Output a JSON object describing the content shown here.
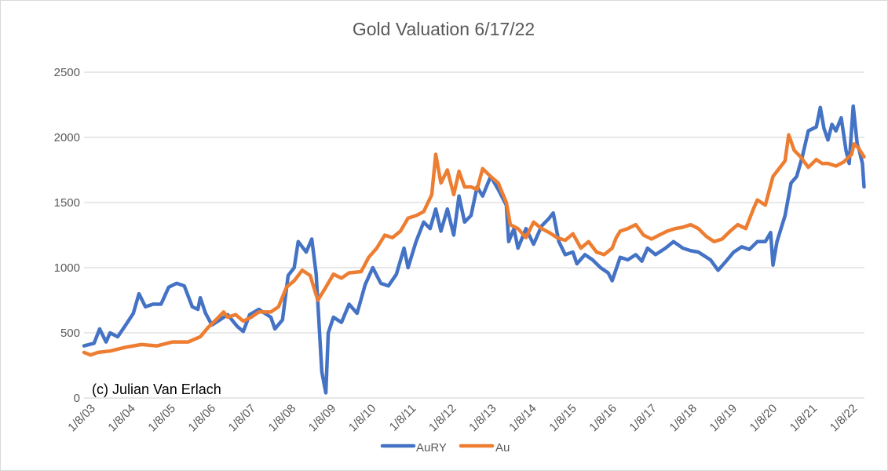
{
  "chart_data": {
    "type": "line",
    "title": "Gold Valuation 6/17/22",
    "annotation": "(c) Julian Van Erlach",
    "xlabel": "",
    "ylabel": "",
    "xlim": [
      2003.0,
      2022.46
    ],
    "ylim": [
      0,
      2500
    ],
    "y_ticks": [
      "0",
      "500",
      "1000",
      "1500",
      "2000",
      "2500"
    ],
    "x_tick_labels": [
      "1/8/03",
      "1/8/04",
      "1/8/05",
      "1/8/06",
      "1/8/07",
      "1/8/08",
      "1/8/09",
      "1/8/10",
      "1/8/11",
      "1/8/12",
      "1/8/13",
      "1/8/14",
      "1/8/15",
      "1/8/16",
      "1/8/17",
      "1/8/18",
      "1/8/19",
      "1/8/20",
      "1/8/21",
      "1/8/22"
    ],
    "grid": "horizontal",
    "legend_position": "bottom",
    "series": [
      {
        "name": "AuRY",
        "color": "#4472c4",
        "points": [
          [
            2003.0,
            400
          ],
          [
            2003.25,
            420
          ],
          [
            2003.39,
            530
          ],
          [
            2003.55,
            430
          ],
          [
            2003.65,
            500
          ],
          [
            2003.84,
            470
          ],
          [
            2004.04,
            560
          ],
          [
            2004.23,
            650
          ],
          [
            2004.37,
            800
          ],
          [
            2004.53,
            700
          ],
          [
            2004.72,
            720
          ],
          [
            2004.92,
            720
          ],
          [
            2005.11,
            850
          ],
          [
            2005.31,
            880
          ],
          [
            2005.5,
            860
          ],
          [
            2005.7,
            700
          ],
          [
            2005.84,
            680
          ],
          [
            2005.9,
            770
          ],
          [
            2006.03,
            650
          ],
          [
            2006.19,
            560
          ],
          [
            2006.39,
            600
          ],
          [
            2006.58,
            640
          ],
          [
            2006.82,
            550
          ],
          [
            2006.97,
            510
          ],
          [
            2007.13,
            640
          ],
          [
            2007.36,
            680
          ],
          [
            2007.66,
            620
          ],
          [
            2007.76,
            530
          ],
          [
            2007.95,
            600
          ],
          [
            2008.09,
            940
          ],
          [
            2008.24,
            1000
          ],
          [
            2008.34,
            1200
          ],
          [
            2008.54,
            1120
          ],
          [
            2008.68,
            1220
          ],
          [
            2008.79,
            950
          ],
          [
            2008.93,
            200
          ],
          [
            2009.03,
            40
          ],
          [
            2009.09,
            500
          ],
          [
            2009.22,
            620
          ],
          [
            2009.42,
            580
          ],
          [
            2009.61,
            720
          ],
          [
            2009.81,
            650
          ],
          [
            2010.01,
            870
          ],
          [
            2010.2,
            1000
          ],
          [
            2010.4,
            880
          ],
          [
            2010.59,
            860
          ],
          [
            2010.79,
            950
          ],
          [
            2010.98,
            1150
          ],
          [
            2011.08,
            1000
          ],
          [
            2011.28,
            1200
          ],
          [
            2011.47,
            1350
          ],
          [
            2011.63,
            1300
          ],
          [
            2011.77,
            1450
          ],
          [
            2011.9,
            1280
          ],
          [
            2012.06,
            1450
          ],
          [
            2012.22,
            1250
          ],
          [
            2012.35,
            1550
          ],
          [
            2012.49,
            1350
          ],
          [
            2012.65,
            1400
          ],
          [
            2012.8,
            1620
          ],
          [
            2012.94,
            1550
          ],
          [
            2013.14,
            1700
          ],
          [
            2013.33,
            1600
          ],
          [
            2013.53,
            1480
          ],
          [
            2013.59,
            1200
          ],
          [
            2013.72,
            1300
          ],
          [
            2013.82,
            1150
          ],
          [
            2014.02,
            1300
          ],
          [
            2014.21,
            1180
          ],
          [
            2014.41,
            1320
          ],
          [
            2014.6,
            1380
          ],
          [
            2014.7,
            1420
          ],
          [
            2014.84,
            1200
          ],
          [
            2015.0,
            1100
          ],
          [
            2015.19,
            1120
          ],
          [
            2015.29,
            1030
          ],
          [
            2015.49,
            1100
          ],
          [
            2015.68,
            1060
          ],
          [
            2015.88,
            1000
          ],
          [
            2016.07,
            960
          ],
          [
            2016.17,
            900
          ],
          [
            2016.37,
            1080
          ],
          [
            2016.56,
            1060
          ],
          [
            2016.76,
            1100
          ],
          [
            2016.91,
            1050
          ],
          [
            2017.05,
            1150
          ],
          [
            2017.25,
            1100
          ],
          [
            2017.5,
            1150
          ],
          [
            2017.7,
            1200
          ],
          [
            2017.93,
            1150
          ],
          [
            2018.13,
            1130
          ],
          [
            2018.32,
            1120
          ],
          [
            2018.62,
            1060
          ],
          [
            2018.81,
            980
          ],
          [
            2019.01,
            1050
          ],
          [
            2019.2,
            1120
          ],
          [
            2019.4,
            1160
          ],
          [
            2019.59,
            1140
          ],
          [
            2019.79,
            1200
          ],
          [
            2019.99,
            1200
          ],
          [
            2020.12,
            1270
          ],
          [
            2020.18,
            1020
          ],
          [
            2020.28,
            1200
          ],
          [
            2020.48,
            1400
          ],
          [
            2020.63,
            1650
          ],
          [
            2020.77,
            1700
          ],
          [
            2020.91,
            1850
          ],
          [
            2021.06,
            2050
          ],
          [
            2021.26,
            2080
          ],
          [
            2021.36,
            2230
          ],
          [
            2021.45,
            2070
          ],
          [
            2021.55,
            1980
          ],
          [
            2021.65,
            2100
          ],
          [
            2021.75,
            2050
          ],
          [
            2021.88,
            2150
          ],
          [
            2022.0,
            1900
          ],
          [
            2022.08,
            1800
          ],
          [
            2022.18,
            2240
          ],
          [
            2022.28,
            1950
          ],
          [
            2022.33,
            1900
          ],
          [
            2022.41,
            1800
          ],
          [
            2022.45,
            1620
          ]
        ]
      },
      {
        "name": "Au",
        "color": "#ed7d31",
        "points": [
          [
            2003.0,
            350
          ],
          [
            2003.16,
            330
          ],
          [
            2003.35,
            350
          ],
          [
            2003.65,
            360
          ],
          [
            2004.04,
            390
          ],
          [
            2004.43,
            410
          ],
          [
            2004.82,
            400
          ],
          [
            2005.21,
            430
          ],
          [
            2005.6,
            430
          ],
          [
            2005.9,
            470
          ],
          [
            2006.09,
            540
          ],
          [
            2006.29,
            600
          ],
          [
            2006.48,
            660
          ],
          [
            2006.58,
            620
          ],
          [
            2006.78,
            640
          ],
          [
            2006.97,
            590
          ],
          [
            2007.17,
            620
          ],
          [
            2007.36,
            660
          ],
          [
            2007.66,
            660
          ],
          [
            2007.85,
            700
          ],
          [
            2008.05,
            850
          ],
          [
            2008.24,
            900
          ],
          [
            2008.44,
            980
          ],
          [
            2008.64,
            940
          ],
          [
            2008.83,
            750
          ],
          [
            2009.03,
            850
          ],
          [
            2009.22,
            950
          ],
          [
            2009.42,
            920
          ],
          [
            2009.61,
            960
          ],
          [
            2009.91,
            970
          ],
          [
            2010.1,
            1080
          ],
          [
            2010.3,
            1150
          ],
          [
            2010.5,
            1250
          ],
          [
            2010.69,
            1230
          ],
          [
            2010.89,
            1280
          ],
          [
            2011.08,
            1380
          ],
          [
            2011.28,
            1400
          ],
          [
            2011.47,
            1430
          ],
          [
            2011.67,
            1560
          ],
          [
            2011.77,
            1870
          ],
          [
            2011.9,
            1650
          ],
          [
            2012.06,
            1750
          ],
          [
            2012.22,
            1560
          ],
          [
            2012.35,
            1740
          ],
          [
            2012.49,
            1620
          ],
          [
            2012.65,
            1620
          ],
          [
            2012.8,
            1600
          ],
          [
            2012.94,
            1760
          ],
          [
            2013.14,
            1700
          ],
          [
            2013.33,
            1650
          ],
          [
            2013.53,
            1500
          ],
          [
            2013.63,
            1330
          ],
          [
            2013.82,
            1300
          ],
          [
            2014.02,
            1230
          ],
          [
            2014.21,
            1350
          ],
          [
            2014.41,
            1300
          ],
          [
            2014.6,
            1270
          ],
          [
            2014.8,
            1230
          ],
          [
            2015.0,
            1210
          ],
          [
            2015.19,
            1260
          ],
          [
            2015.39,
            1150
          ],
          [
            2015.58,
            1200
          ],
          [
            2015.78,
            1120
          ],
          [
            2015.97,
            1100
          ],
          [
            2016.17,
            1150
          ],
          [
            2016.27,
            1230
          ],
          [
            2016.37,
            1280
          ],
          [
            2016.56,
            1300
          ],
          [
            2016.76,
            1330
          ],
          [
            2016.95,
            1250
          ],
          [
            2017.15,
            1220
          ],
          [
            2017.34,
            1250
          ],
          [
            2017.54,
            1280
          ],
          [
            2017.74,
            1300
          ],
          [
            2017.93,
            1310
          ],
          [
            2018.13,
            1330
          ],
          [
            2018.32,
            1300
          ],
          [
            2018.52,
            1240
          ],
          [
            2018.71,
            1200
          ],
          [
            2018.91,
            1220
          ],
          [
            2019.11,
            1280
          ],
          [
            2019.3,
            1330
          ],
          [
            2019.5,
            1300
          ],
          [
            2019.69,
            1450
          ],
          [
            2019.79,
            1520
          ],
          [
            2019.99,
            1480
          ],
          [
            2020.18,
            1700
          ],
          [
            2020.28,
            1740
          ],
          [
            2020.48,
            1820
          ],
          [
            2020.57,
            2020
          ],
          [
            2020.71,
            1900
          ],
          [
            2020.87,
            1850
          ],
          [
            2021.06,
            1770
          ],
          [
            2021.26,
            1830
          ],
          [
            2021.4,
            1800
          ],
          [
            2021.55,
            1800
          ],
          [
            2021.75,
            1780
          ],
          [
            2021.94,
            1810
          ],
          [
            2022.14,
            1870
          ],
          [
            2022.2,
            1950
          ],
          [
            2022.31,
            1920
          ],
          [
            2022.45,
            1850
          ]
        ]
      }
    ]
  }
}
